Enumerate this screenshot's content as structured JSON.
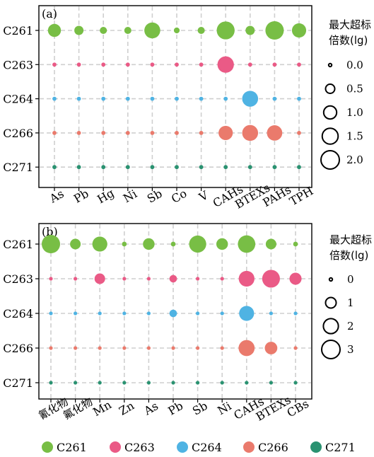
{
  "colors": {
    "C261": "#78be45",
    "C263": "#ea5a86",
    "C264": "#4fb3e3",
    "C266": "#ea7a6c",
    "C271": "#2a9271",
    "grid": "#cfcfcf",
    "axis": "#000000"
  },
  "legend": {
    "items": [
      {
        "label": "C261",
        "color": "#78be45"
      },
      {
        "label": "C263",
        "color": "#ea5a86"
      },
      {
        "label": "C264",
        "color": "#4fb3e3"
      },
      {
        "label": "C266",
        "color": "#ea7a6c"
      },
      {
        "label": "C271",
        "color": "#2a9271"
      }
    ]
  },
  "chart_data": [
    {
      "type": "scatter",
      "panel_label": "(a)",
      "size_legend_title_line1": "最大超标",
      "size_legend_title_line2": "倍数(lg)",
      "size_legend": [
        "0.0",
        "0.5",
        "1.0",
        "1.5",
        "2.0"
      ],
      "size_legend_values": [
        0,
        0.5,
        1.0,
        1.5,
        2.0
      ],
      "categories": [
        "As",
        "Pb",
        "Hg",
        "Ni",
        "Sb",
        "Co",
        "V",
        "CAHs",
        "BTEXs",
        "PAHs",
        "TPH"
      ],
      "rows": [
        "C261",
        "C263",
        "C264",
        "C266",
        "C271"
      ],
      "values": [
        [
          1.0,
          0.5,
          0.3,
          0.3,
          1.5,
          0.2,
          0.3,
          1.9,
          0.5,
          2.0,
          1.2
        ],
        [
          0.1,
          0.1,
          0.1,
          0.1,
          0.1,
          0.1,
          0.1,
          1.6,
          0.1,
          0.1,
          0.1
        ],
        [
          0.1,
          0.1,
          0.1,
          0.1,
          0.1,
          0.1,
          0.1,
          0.1,
          1.5,
          0.1,
          0.1
        ],
        [
          0.1,
          0.1,
          0.1,
          0.1,
          0.1,
          0.1,
          0.1,
          1.2,
          1.5,
          1.4,
          0.1
        ],
        [
          0.1,
          0.1,
          0.1,
          0.1,
          0.1,
          0.1,
          0.1,
          0.1,
          0.1,
          0.1,
          0.1
        ]
      ]
    },
    {
      "type": "scatter",
      "panel_label": "(b)",
      "size_legend_title_line1": "最大超标",
      "size_legend_title_line2": "倍数(lg)",
      "size_legend": [
        "0",
        "1",
        "2",
        "3"
      ],
      "size_legend_values": [
        0,
        1,
        2,
        3
      ],
      "categories": [
        "氰化物",
        "氟化物",
        "Mn",
        "Zn",
        "As",
        "Pb",
        "Sb",
        "Ni",
        "CAHs",
        "BTEXs",
        "CBs"
      ],
      "rows": [
        "C261",
        "C263",
        "C264",
        "C266",
        "C271"
      ],
      "values": [
        [
          3.0,
          1.0,
          2.0,
          0.2,
          1.2,
          0.2,
          2.6,
          1.2,
          2.7,
          1.0,
          0.2
        ],
        [
          0.1,
          0.1,
          1.0,
          0.1,
          0.1,
          0.5,
          0.1,
          0.1,
          2.2,
          2.8,
          1.3
        ],
        [
          0.1,
          0.1,
          0.1,
          0.1,
          0.1,
          0.5,
          0.1,
          0.1,
          2.0,
          0.1,
          0.1
        ],
        [
          0.1,
          0.1,
          0.1,
          0.1,
          0.1,
          0.1,
          0.1,
          0.1,
          2.3,
          1.4,
          0.1
        ],
        [
          0.1,
          0.1,
          0.1,
          0.1,
          0.1,
          0.1,
          0.1,
          0.1,
          0.1,
          0.1,
          0.1
        ]
      ]
    }
  ]
}
